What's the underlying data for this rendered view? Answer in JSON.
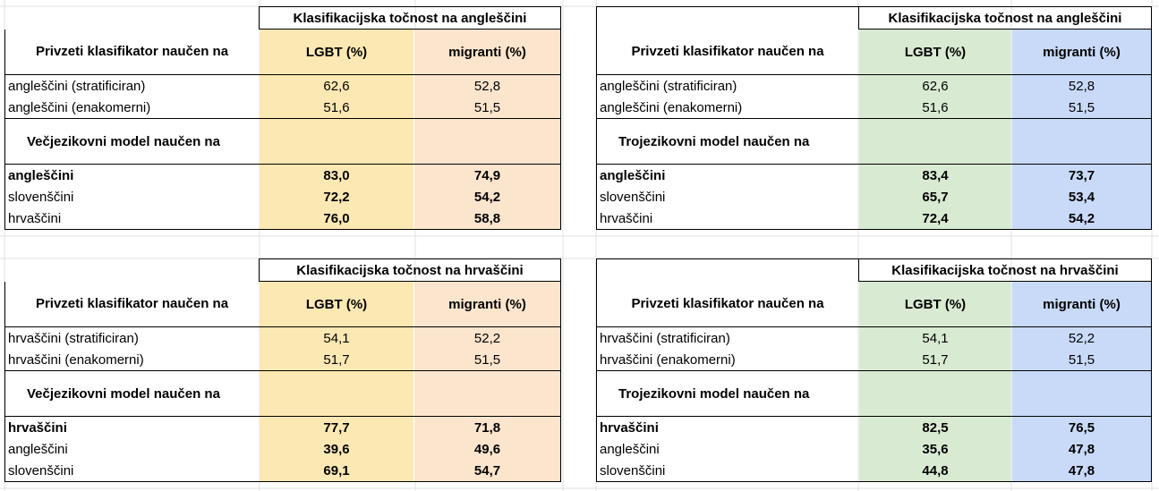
{
  "colors": {
    "left_lgbt": "#fce8b2",
    "left_migranti": "#fce5cd",
    "right_lgbt": "#d9ead3",
    "right_migranti": "#c9daf8"
  },
  "tables": [
    {
      "title": "Klasifikacijska točnost na angleščini",
      "head_label": "Privzeti klasifikator naučen na",
      "col_lgbt": "LGBT (%)",
      "col_migranti": "migranti (%)",
      "baseline_rows": [
        {
          "label": "angleščini (stratificiran)",
          "lgbt": "62,6",
          "migranti": "52,8"
        },
        {
          "label": "angleščini (enakomerni)",
          "lgbt": "51,6",
          "migranti": "51,5"
        }
      ],
      "section_label": "Večjezikovni model naučen na",
      "model_rows": [
        {
          "label": "angleščini",
          "lgbt": "83,0",
          "migranti": "74,9",
          "bold_label": true
        },
        {
          "label": "slovenščini",
          "lgbt": "72,2",
          "migranti": "54,2",
          "bold_label": false
        },
        {
          "label": "hrvaščini",
          "lgbt": "76,0",
          "migranti": "58,8",
          "bold_label": false
        }
      ]
    },
    {
      "title": "Klasifikacijska točnost na angleščini",
      "head_label": "Privzeti klasifikator naučen na",
      "col_lgbt": "LGBT (%)",
      "col_migranti": "migranti (%)",
      "baseline_rows": [
        {
          "label": "angleščini (stratificiran)",
          "lgbt": "62,6",
          "migranti": "52,8"
        },
        {
          "label": "angleščini (enakomerni)",
          "lgbt": "51,6",
          "migranti": "51,5"
        }
      ],
      "section_label": "Trojezikovni model naučen na",
      "model_rows": [
        {
          "label": "angleščini",
          "lgbt": "83,4",
          "migranti": "73,7",
          "bold_label": true
        },
        {
          "label": "slovenščini",
          "lgbt": "65,7",
          "migranti": "53,4",
          "bold_label": false
        },
        {
          "label": "hrvaščini",
          "lgbt": "72,4",
          "migranti": "54,2",
          "bold_label": false
        }
      ]
    },
    {
      "title": "Klasifikacijska točnost na hrvaščini",
      "head_label": "Privzeti klasifikator naučen na",
      "col_lgbt": "LGBT (%)",
      "col_migranti": "migranti (%)",
      "baseline_rows": [
        {
          "label": "hrvaščini (stratificiran)",
          "lgbt": "54,1",
          "migranti": "52,2"
        },
        {
          "label": "hrvaščini (enakomerni)",
          "lgbt": "51,7",
          "migranti": "51,5"
        }
      ],
      "section_label": "Večjezikovni model naučen na",
      "model_rows": [
        {
          "label": "hrvaščini",
          "lgbt": "77,7",
          "migranti": "71,8",
          "bold_label": true
        },
        {
          "label": "angleščini",
          "lgbt": "39,6",
          "migranti": "49,6",
          "bold_label": false
        },
        {
          "label": "slovenščini",
          "lgbt": "69,1",
          "migranti": "54,7",
          "bold_label": false
        }
      ]
    },
    {
      "title": "Klasifikacijska točnost na hrvaščini",
      "head_label": "Privzeti klasifikator naučen na",
      "col_lgbt": "LGBT (%)",
      "col_migranti": "migranti (%)",
      "baseline_rows": [
        {
          "label": "hrvaščini (stratificiran)",
          "lgbt": "54,1",
          "migranti": "52,2"
        },
        {
          "label": "hrvaščini (enakomerni)",
          "lgbt": "51,7",
          "migranti": "51,5"
        }
      ],
      "section_label": "Trojezikovni model naučen na",
      "model_rows": [
        {
          "label": "hrvaščini",
          "lgbt": "82,5",
          "migranti": "76,5",
          "bold_label": true
        },
        {
          "label": "angleščini",
          "lgbt": "35,6",
          "migranti": "47,8",
          "bold_label": false
        },
        {
          "label": "slovenščini",
          "lgbt": "44,8",
          "migranti": "47,8",
          "bold_label": false
        }
      ]
    }
  ]
}
